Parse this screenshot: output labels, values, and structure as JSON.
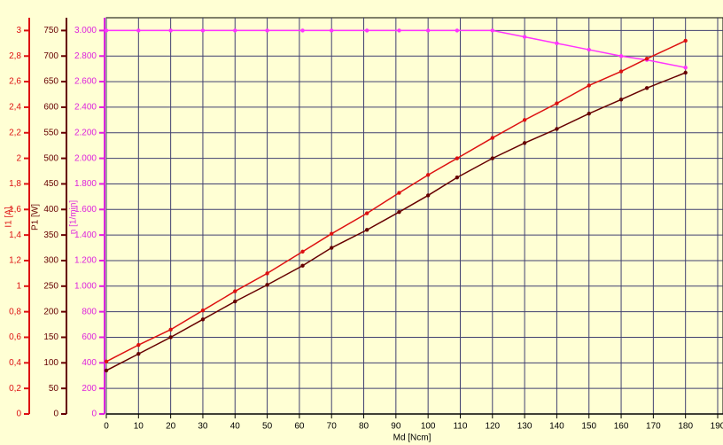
{
  "chart_data": {
    "type": "line",
    "x_label": "Md [Ncm]",
    "y_label": "n [1/min]",
    "y2_label": "P1 [W]",
    "y3_label": "I1 [A]",
    "x": [
      0,
      10,
      20,
      30,
      40,
      50,
      61,
      70,
      81,
      91,
      100,
      109,
      120,
      130,
      140,
      150,
      160,
      168,
      180
    ],
    "xlim": [
      0,
      190
    ],
    "xticks": [
      0,
      10,
      20,
      30,
      40,
      50,
      60,
      70,
      80,
      90,
      100,
      110,
      120,
      130,
      140,
      150,
      160,
      170,
      180,
      190
    ],
    "ylim": [
      0,
      3100
    ],
    "yticks": [
      0,
      200,
      400,
      600,
      800,
      {
        "value": 1000,
        "label": "1.000"
      },
      {
        "value": 1200,
        "label": "1.200"
      },
      {
        "value": 1400,
        "label": "1.400"
      },
      {
        "value": 1600,
        "label": "1.600"
      },
      {
        "value": 1800,
        "label": "1.800"
      },
      {
        "value": 2000,
        "label": "2.000"
      },
      {
        "value": 2200,
        "label": "2.200"
      },
      {
        "value": 2400,
        "label": "2.400"
      },
      {
        "value": 2600,
        "label": "2.600"
      },
      {
        "value": 2800,
        "label": "2.800"
      },
      {
        "value": 3000,
        "label": "3.000"
      }
    ],
    "y2lim": [
      0,
      775
    ],
    "y2ticks": [
      0,
      50,
      100,
      150,
      200,
      250,
      300,
      350,
      400,
      450,
      500,
      550,
      600,
      650,
      700,
      750
    ],
    "y3lim": [
      0,
      3.1
    ],
    "y3ticks": [
      0,
      {
        "value": 0.2,
        "label": "0,2"
      },
      {
        "value": 0.4,
        "label": "0,4"
      },
      {
        "value": 0.6,
        "label": "0,6"
      },
      {
        "value": 0.8,
        "label": "0,8"
      },
      1,
      {
        "value": 1.2,
        "label": "1,2"
      },
      {
        "value": 1.4,
        "label": "1,4"
      },
      {
        "value": 1.6,
        "label": "1,6"
      },
      {
        "value": 1.8,
        "label": "1,8"
      },
      2,
      {
        "value": 2.2,
        "label": "2,2"
      },
      {
        "value": 2.4,
        "label": "2,4"
      },
      {
        "value": 2.6,
        "label": "2,6"
      },
      {
        "value": 2.8,
        "label": "2,8"
      },
      3
    ],
    "grid": true,
    "series": [
      {
        "axis": "y",
        "color": "#ff33ff",
        "values": [
          3000,
          3000,
          3000,
          3000,
          3000,
          3000,
          3000,
          3000,
          3000,
          3000,
          3000,
          3000,
          3000,
          2950,
          2900,
          2850,
          2800,
          2770,
          2710
        ]
      },
      {
        "axis": "y3",
        "color": "#dd1111",
        "values": [
          0.41,
          0.54,
          0.66,
          0.81,
          0.96,
          1.1,
          1.27,
          1.41,
          1.57,
          1.73,
          1.87,
          2.0,
          2.16,
          2.3,
          2.43,
          2.57,
          2.68,
          2.78,
          2.92
        ]
      },
      {
        "axis": "y2",
        "color": "#660000",
        "values": [
          85,
          117.5,
          150,
          185,
          220,
          252.5,
          290,
          325,
          360,
          395,
          427.5,
          462.5,
          500,
          530,
          557.5,
          587.5,
          615,
          637.5,
          667.5
        ]
      }
    ]
  }
}
